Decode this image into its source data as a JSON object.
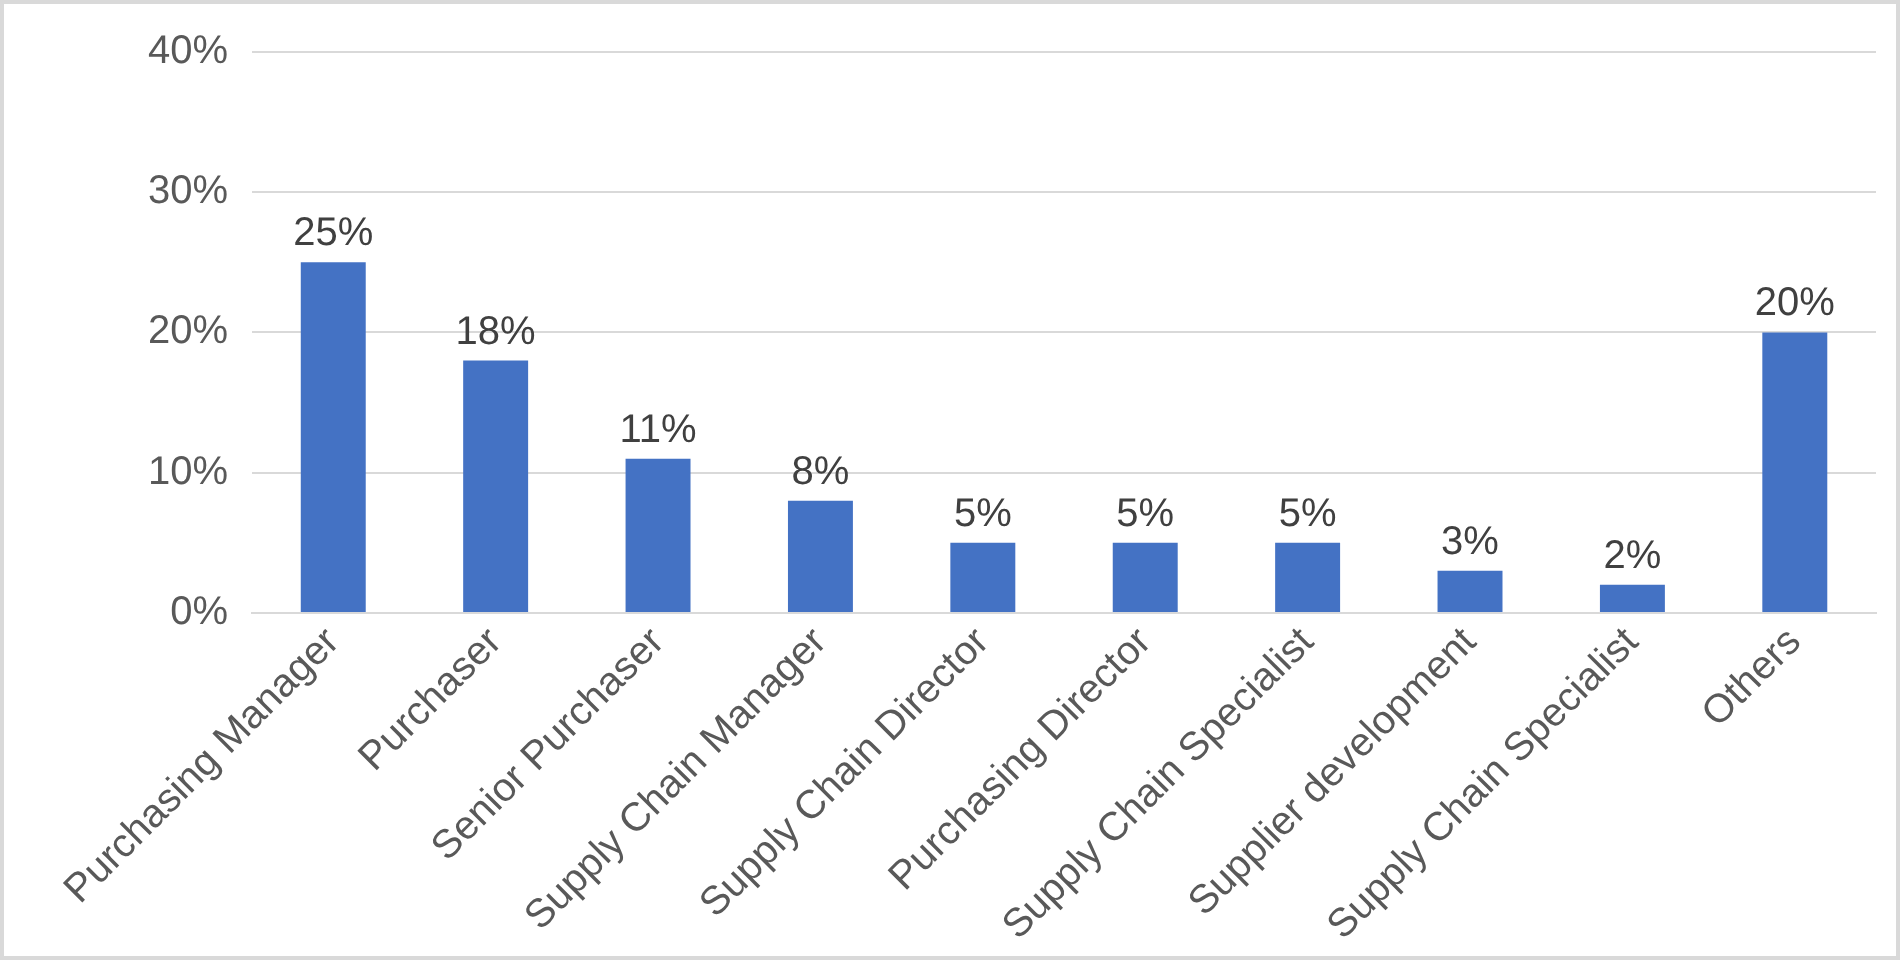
{
  "chart_data": {
    "type": "bar",
    "categories": [
      "Purchasing Manager",
      "Purchaser",
      "Senior Purchaser",
      "Supply Chain Manager",
      "Supply Chain Director",
      "Purchasing Director",
      "Supply Chain Specialist",
      "Supplier development",
      "Supply Chain Specialist",
      "Others"
    ],
    "values": [
      25,
      18,
      11,
      8,
      5,
      5,
      5,
      3,
      2,
      20
    ],
    "value_labels": [
      "25%",
      "18%",
      "11%",
      "8%",
      "5%",
      "5%",
      "5%",
      "3%",
      "2%",
      "20%"
    ],
    "color": "#4472c4",
    "ylim": [
      0,
      40
    ],
    "yticks": [
      {
        "value": 0,
        "label": "0%"
      },
      {
        "value": 10,
        "label": "10%"
      },
      {
        "value": 20,
        "label": "20%"
      },
      {
        "value": 30,
        "label": "30%"
      },
      {
        "value": 40,
        "label": "40%"
      }
    ],
    "grid": "y"
  }
}
